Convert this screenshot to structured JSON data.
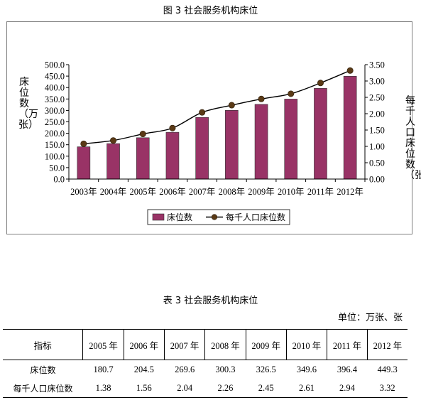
{
  "figure_caption": "图 3    社会服务机构床位",
  "chart_data": {
    "type": "bar",
    "categories": [
      "2003年",
      "2004年",
      "2005年",
      "2006年",
      "2007年",
      "2008年",
      "2009年",
      "2010年",
      "2011年",
      "2012年"
    ],
    "series": [
      {
        "name": "床位数",
        "type": "bar",
        "axis": "left",
        "color": "#993366",
        "values": [
          141.0,
          155.0,
          180.7,
          204.5,
          269.6,
          300.3,
          326.5,
          349.6,
          396.4,
          449.3
        ]
      },
      {
        "name": "每千人口床位数",
        "type": "line",
        "axis": "right",
        "color": "#000000",
        "values": [
          1.08,
          1.18,
          1.38,
          1.56,
          2.04,
          2.26,
          2.45,
          2.61,
          2.94,
          3.32
        ]
      }
    ],
    "ylabel": "床位数（万张）",
    "y2label": "每千人口床位数（张）",
    "ylim": [
      0,
      500
    ],
    "y2lim": [
      0,
      3.5
    ],
    "yticks": [
      "0.0",
      "50.0",
      "100.0",
      "150.0",
      "200.0",
      "250.0",
      "300.0",
      "350.0",
      "400.0",
      "450.0",
      "500.0"
    ],
    "y2ticks": [
      "0.00",
      "0.50",
      "1.00",
      "1.50",
      "2.00",
      "2.50",
      "3.00",
      "3.50"
    ],
    "legend_position": "bottom",
    "grid": false
  },
  "table": {
    "caption": "表 3        社会服务机构床位",
    "unit": "单位：万张、张",
    "headers": [
      "指标",
      "2005 年",
      "2006 年",
      "2007 年",
      "2008 年",
      "2009 年",
      "2010 年",
      "2011 年",
      "2012 年"
    ],
    "rows": [
      {
        "label": "床位数",
        "values": [
          "180.7",
          "204.5",
          "269.6",
          "300.3",
          "326.5",
          "349.6",
          "396.4",
          "449.3"
        ]
      },
      {
        "label": "每千人口床位数",
        "values": [
          "1.38",
          "1.56",
          "2.04",
          "2.26",
          "2.45",
          "2.61",
          "2.94",
          "3.32"
        ]
      }
    ]
  }
}
